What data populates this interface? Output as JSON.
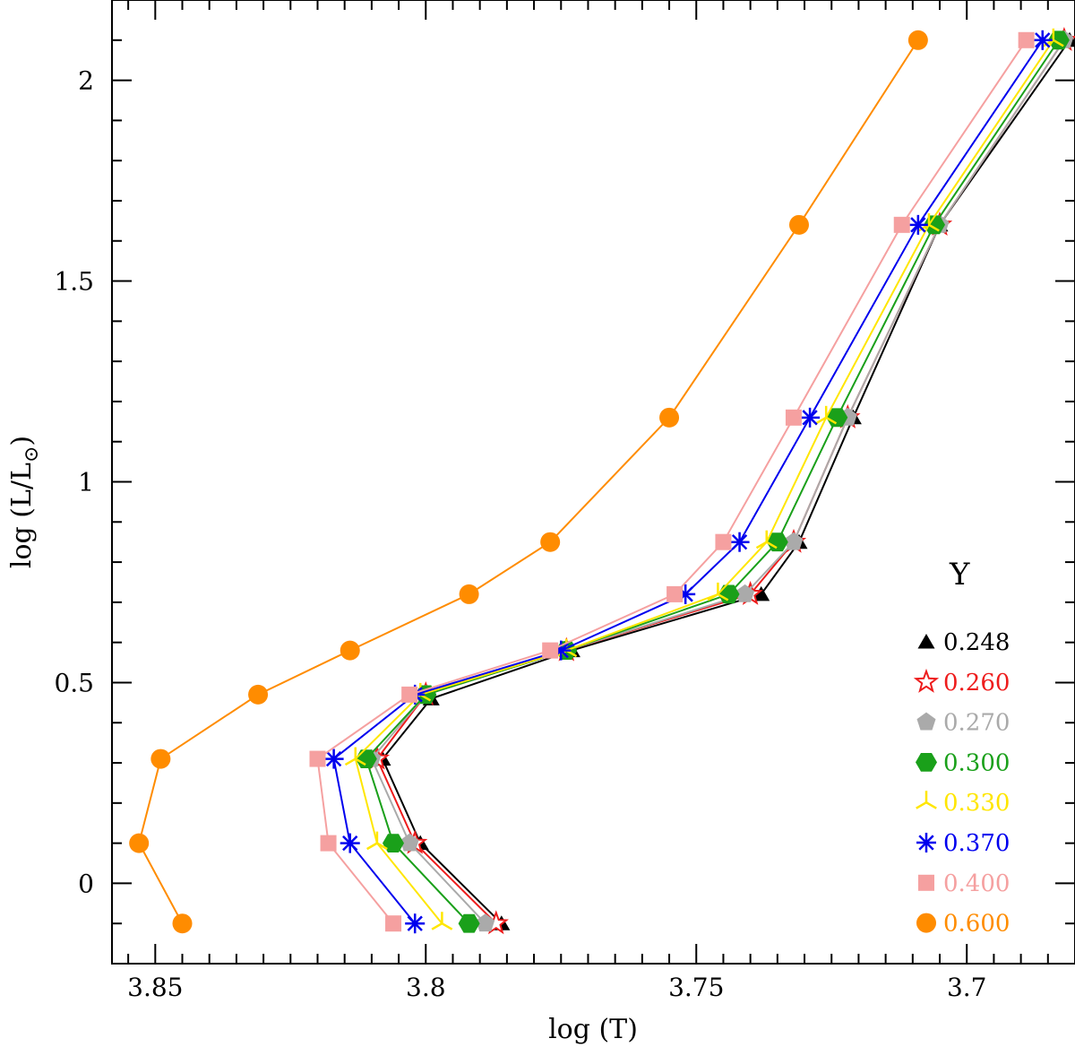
{
  "chart_data": {
    "type": "line",
    "xlabel": "log (T)",
    "ylabel": "log (L/L",
    "ylabel_subscript": "⊙",
    "ylabel_close": ")",
    "xlim": [
      3.858,
      3.68
    ],
    "ylim": [
      -0.2,
      2.2
    ],
    "x_ticks": [
      3.85,
      3.8,
      3.75,
      3.7
    ],
    "x_tick_labels": [
      "3.85",
      "3.8",
      "3.75",
      "3.7"
    ],
    "y_ticks": [
      0,
      0.5,
      1,
      1.5,
      2
    ],
    "y_tick_labels": [
      "0",
      "0.5",
      "1",
      "1.5",
      "2"
    ],
    "legend_title": "Y",
    "legend_position": "bottom-right",
    "series": [
      {
        "name": "0.248",
        "color": "#000000",
        "marker": "triangle",
        "x": [
          3.786,
          3.801,
          3.808,
          3.799,
          3.773,
          3.738,
          3.731,
          3.721,
          3.705,
          3.681
        ],
        "y": [
          -0.1,
          0.1,
          0.31,
          0.46,
          0.58,
          0.72,
          0.85,
          1.16,
          1.64,
          2.1
        ]
      },
      {
        "name": "0.260",
        "color": "#ee1c1c",
        "marker": "star",
        "x": [
          3.787,
          3.802,
          3.809,
          3.8,
          3.774,
          3.74,
          3.732,
          3.722,
          3.705,
          3.682
        ],
        "y": [
          -0.1,
          0.1,
          0.31,
          0.47,
          0.58,
          0.72,
          0.85,
          1.16,
          1.64,
          2.1
        ]
      },
      {
        "name": "0.270",
        "color": "#aaaaaa",
        "marker": "pentagon",
        "x": [
          3.789,
          3.803,
          3.81,
          3.8,
          3.774,
          3.741,
          3.732,
          3.722,
          3.705,
          3.682
        ],
        "y": [
          -0.1,
          0.1,
          0.31,
          0.47,
          0.58,
          0.72,
          0.85,
          1.16,
          1.64,
          2.1
        ]
      },
      {
        "name": "0.300",
        "color": "#1aa01a",
        "marker": "hexagon",
        "x": [
          3.792,
          3.806,
          3.811,
          3.8,
          3.774,
          3.744,
          3.735,
          3.724,
          3.706,
          3.683
        ],
        "y": [
          -0.1,
          0.1,
          0.31,
          0.47,
          0.58,
          0.72,
          0.85,
          1.16,
          1.64,
          2.1
        ]
      },
      {
        "name": "0.330",
        "color": "#ffe600",
        "marker": "tristar",
        "x": [
          3.797,
          3.809,
          3.813,
          3.801,
          3.774,
          3.746,
          3.737,
          3.726,
          3.707,
          3.684
        ],
        "y": [
          -0.1,
          0.1,
          0.31,
          0.47,
          0.58,
          0.72,
          0.85,
          1.16,
          1.64,
          2.1
        ]
      },
      {
        "name": "0.370",
        "color": "#0000ee",
        "marker": "asterisk",
        "x": [
          3.802,
          3.814,
          3.817,
          3.802,
          3.775,
          3.752,
          3.742,
          3.729,
          3.709,
          3.686
        ],
        "y": [
          -0.1,
          0.1,
          0.31,
          0.47,
          0.58,
          0.72,
          0.85,
          1.16,
          1.64,
          2.1
        ]
      },
      {
        "name": "0.400",
        "color": "#f5a0a0",
        "marker": "square",
        "x": [
          3.806,
          3.818,
          3.82,
          3.803,
          3.777,
          3.754,
          3.745,
          3.732,
          3.712,
          3.689
        ],
        "y": [
          -0.1,
          0.1,
          0.31,
          0.47,
          0.58,
          0.72,
          0.85,
          1.16,
          1.64,
          2.1
        ]
      },
      {
        "name": "0.600",
        "color": "#ff8c00",
        "marker": "circle",
        "x": [
          3.845,
          3.853,
          3.849,
          3.831,
          3.814,
          3.792,
          3.777,
          3.755,
          3.731,
          3.709
        ],
        "y": [
          -0.1,
          0.1,
          0.31,
          0.47,
          0.58,
          0.72,
          0.85,
          1.16,
          1.64,
          2.1
        ]
      }
    ]
  }
}
